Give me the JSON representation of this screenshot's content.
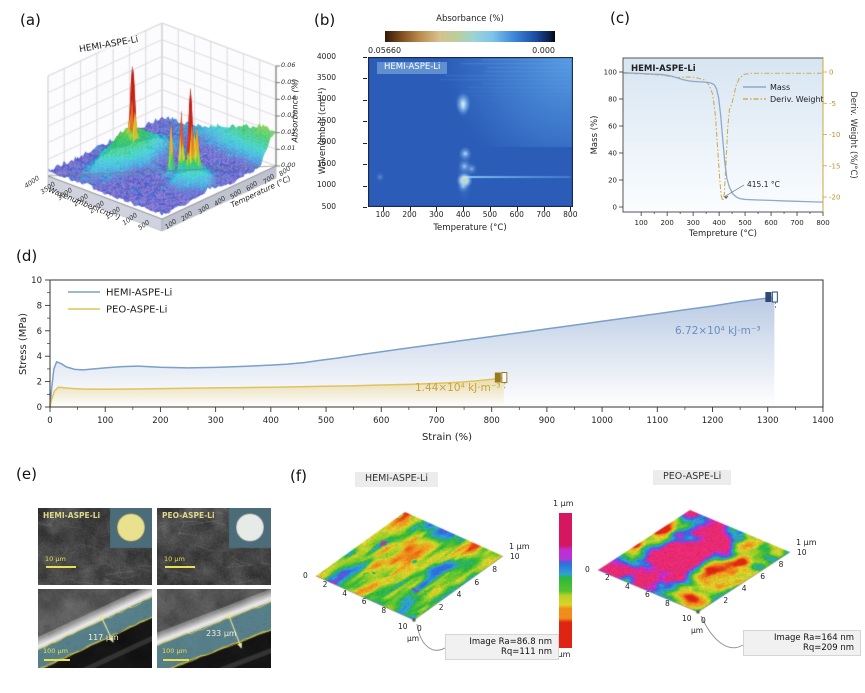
{
  "panel_a": {
    "letter": "(a)",
    "sample_label": "HEMI-ASPE-Li",
    "zlabel": "Absorbance (%)",
    "xlabel": "Wavenumber (cm⁻¹)",
    "ylabel": "Temperature (°C)",
    "zticks": [
      "0.00",
      "0.01",
      "0.02",
      "0.03",
      "0.04",
      "0.05",
      "0.06"
    ],
    "xticks": [
      "4000",
      "3500",
      "3000",
      "2500",
      "2000",
      "1500",
      "1000",
      "500"
    ],
    "yticks": [
      "100",
      "200",
      "300",
      "400",
      "500",
      "600",
      "700",
      "800"
    ]
  },
  "panel_b": {
    "letter": "(b)",
    "colorbar_title": "Absorbance (%)",
    "colorbar_left_value": "0.05660",
    "colorbar_right_value": "0.000",
    "sample_label": "HEMI-ASPE-Li",
    "ylabel": "Wavenumber (cm⁻¹)",
    "xlabel": "Temperature (°C)",
    "yticks": [
      "4000",
      "3500",
      "3000",
      "2500",
      "2000",
      "1500",
      "1000",
      "500"
    ],
    "xticks": [
      "100",
      "200",
      "300",
      "400",
      "500",
      "600",
      "700",
      "800"
    ]
  },
  "panel_c": {
    "letter": "(c)",
    "sample_label": "HEMI-ASPE-Li",
    "xlabel": "Tempreture (°C)",
    "ylabel_left": "Mass (%)",
    "ylabel_right": "Deriv. Weight (%/°C)",
    "legend": [
      {
        "label": "Mass"
      },
      {
        "label": "Deriv. Weight"
      }
    ],
    "annotation": "415.1 °C",
    "yticks_left": [
      "0",
      "20",
      "40",
      "60",
      "80",
      "100"
    ],
    "yticks_right": [
      "0",
      "-5",
      "-10",
      "-15",
      "-20"
    ],
    "xticks": [
      "100",
      "200",
      "300",
      "400",
      "500",
      "600",
      "700",
      "800"
    ]
  },
  "panel_d": {
    "letter": "(d)",
    "legend": [
      {
        "label": "HEMI-ASPE-Li"
      },
      {
        "label": "PEO-ASPE-Li"
      }
    ],
    "xlabel": "Strain (%)",
    "ylabel": "Stress (MPa)",
    "annotation_hemi": "6.72×10⁴ kJ·m⁻³",
    "annotation_peo": "1.44×10⁴ kJ·m⁻³",
    "xticks": [
      "0",
      "100",
      "200",
      "300",
      "400",
      "500",
      "600",
      "700",
      "800",
      "900",
      "1000",
      "1100",
      "1200",
      "1300",
      "1400"
    ],
    "yticks": [
      "0",
      "2",
      "4",
      "6",
      "8",
      "10"
    ]
  },
  "panel_e": {
    "letter": "(e)",
    "top_left_label": "HEMI-ASPE-Li",
    "top_right_label": "PEO-ASPE-Li",
    "scalebar_top": "10 μm",
    "scalebar_bottom": "100 μm",
    "thickness_left": "117 μm",
    "thickness_right": "233 μm"
  },
  "panel_f": {
    "letter": "(f)",
    "left": {
      "title": "HEMI-ASPE-Li",
      "ra": "Image Ra=86.8 nm",
      "rq": "Rq=111 nm"
    },
    "right": {
      "title": "PEO-ASPE-Li",
      "ra": "Image Ra=164 nm",
      "rq": "Rq=209 nm"
    },
    "colorbar_top": "1 μm",
    "colorbar_bottom": "-1 μm",
    "z_label": "1 μm",
    "unit": "μm",
    "ticks_edge_left": [
      "0",
      "2",
      "4",
      "6",
      "8"
    ],
    "corner_left": "10",
    "corner_right": "0",
    "ticks_edge_right": [
      "2",
      "4",
      "6",
      "8",
      "10"
    ]
  },
  "colors": {
    "panel_b_bg": "#2a5cb8",
    "panel_b_corner": "#4690dd",
    "mass": "#8fa9c7",
    "deriv": "#cfae4e",
    "hemi": "#7c9fcb",
    "peo": "#e2c35b",
    "annotation_hemi": "#6a8fbd",
    "annotation_peo": "#c7a43b",
    "sem_label": "#ded98a",
    "scalebar": "#e8e04e",
    "colorbar_b": [
      [
        "#331a06",
        0
      ],
      [
        "#7a4a1e",
        9
      ],
      [
        "#b9894a",
        20
      ],
      [
        "#d6c18e",
        32
      ],
      [
        "#b7cf9d",
        43
      ],
      [
        "#9ed3d3",
        52
      ],
      [
        "#7fc4ec",
        63
      ],
      [
        "#3c86d8",
        76
      ],
      [
        "#1c4fa8",
        88
      ],
      [
        "#0b1e48",
        97
      ],
      [
        "#05050a",
        100
      ]
    ],
    "afm_bar": [
      [
        "#d4175e",
        0
      ],
      [
        "#d4175e",
        24
      ],
      [
        "#c22ccf",
        27
      ],
      [
        "#b635d6",
        34
      ],
      [
        "#2f6bdc",
        37
      ],
      [
        "#2e9fd8",
        45
      ],
      [
        "#2db83c",
        48
      ],
      [
        "#57c32f",
        58
      ],
      [
        "#b8d023",
        61
      ],
      [
        "#ddd32a",
        68
      ],
      [
        "#ef8c1a",
        71
      ],
      [
        "#ef8c1a",
        78
      ],
      [
        "#e02414",
        81
      ],
      [
        "#e02414",
        100
      ]
    ]
  },
  "chart_data": [
    {
      "panel": "a",
      "type": "surface",
      "title": "HEMI-ASPE-Li",
      "xlabel": "Wavenumber (cm⁻¹)",
      "x_range": [
        4000,
        500
      ],
      "ylabel": "Temperature (°C)",
      "y_range": [
        100,
        800
      ],
      "zlabel": "Absorbance (%)",
      "z_range": [
        0,
        0.06
      ],
      "peaks": [
        {
          "wavenumber": 2915,
          "temperature": 400,
          "absorbance": 0.047
        },
        {
          "wavenumber": 2845,
          "temperature": 395,
          "absorbance": 0.038
        },
        {
          "wavenumber": 1750,
          "temperature": 405,
          "absorbance": 0.03
        },
        {
          "wavenumber": 1400,
          "temperature": 405,
          "absorbance": 0.033
        },
        {
          "wavenumber": 1120,
          "temperature": 405,
          "absorbance": 0.055
        },
        {
          "wavenumber": 1000,
          "temperature": 420,
          "absorbance": 0.022
        },
        {
          "wavenumber": 1250,
          "temperature": 450,
          "absorbance": 0.018
        }
      ],
      "broad_mound": {
        "wavenumber": 3000,
        "temperature": 400,
        "absorbance": 0.018
      },
      "corner_ridge": {
        "temperature": 800,
        "absorbance": 0.012
      }
    },
    {
      "panel": "b",
      "type": "heatmap",
      "colorbar": {
        "title": "Absorbance (%)",
        "max": 0.0566,
        "min": 0.0
      },
      "xlabel": "Temperature (°C)",
      "x_range": [
        50,
        800
      ],
      "ylabel": "Wavenumber (cm⁻¹)",
      "y_range": [
        500,
        4000
      ],
      "hot_spots": [
        {
          "temperature": 400,
          "wavenumber": 2920,
          "intensity": 0.9
        },
        {
          "temperature": 400,
          "wavenumber": 2850,
          "intensity": 0.5
        },
        {
          "temperature": 408,
          "wavenumber": 1745,
          "intensity": 0.65
        },
        {
          "temperature": 405,
          "wavenumber": 1450,
          "intensity": 0.5
        },
        {
          "temperature": 432,
          "wavenumber": 1390,
          "intensity": 0.4
        },
        {
          "temperature": 405,
          "wavenumber": 1120,
          "intensity": 1.0
        },
        {
          "temperature": 400,
          "wavenumber": 980,
          "intensity": 0.45
        },
        {
          "temperature": 90,
          "wavenumber": 1200,
          "intensity": 0.2
        }
      ],
      "ridge_line": {
        "wavenumber": 1200,
        "temperature_from": 400,
        "temperature_to": 800
      }
    },
    {
      "panel": "c",
      "type": "line",
      "xlabel": "Tempreture (°C)",
      "annotation": {
        "text": "415.1 °C",
        "temperature": 415.1
      },
      "series": [
        {
          "name": "Mass",
          "axis": "left",
          "ylim": [
            0,
            100
          ],
          "x": [
            30,
            60,
            100,
            140,
            180,
            200,
            220,
            240,
            260,
            280,
            300,
            320,
            340,
            360,
            372,
            382,
            390,
            398,
            406,
            414,
            422,
            430,
            440,
            452,
            465,
            480,
            500,
            550,
            600,
            650,
            700,
            750,
            800
          ],
          "y": [
            99.6,
            99.2,
            98.9,
            98.5,
            98.1,
            97.6,
            96.8,
            95.6,
            94.4,
            93.5,
            93.0,
            92.8,
            92.6,
            92.2,
            91.6,
            90.4,
            87.5,
            81,
            68,
            50,
            33,
            21,
            14.5,
            10,
            7.5,
            6.2,
            5.6,
            5.2,
            4.9,
            4.5,
            4.2,
            3.9,
            3.6
          ]
        },
        {
          "name": "Deriv. Weight",
          "axis": "right",
          "ylim": [
            -20,
            0
          ],
          "x": [
            30,
            100,
            180,
            240,
            280,
            310,
            340,
            360,
            375,
            386,
            394,
            402,
            408,
            414,
            420,
            426,
            433,
            440,
            448,
            456,
            465,
            478,
            495,
            520,
            600,
            700,
            800
          ],
          "y": [
            -0.2,
            -0.3,
            -0.5,
            -0.9,
            -0.8,
            -0.9,
            -1.2,
            -2.0,
            -3.5,
            -7,
            -12,
            -17,
            -19.8,
            -20.6,
            -19.5,
            -15,
            -9,
            -6,
            -5.2,
            -4.0,
            -2.2,
            -1.0,
            -0.4,
            -0.2,
            -0.2,
            -0.2,
            -0.2
          ]
        }
      ]
    },
    {
      "panel": "d",
      "type": "line",
      "xlabel": "Strain (%)",
      "ylabel": "Stress (MPa)",
      "xlim": [
        0,
        1400
      ],
      "ylim": [
        0,
        10
      ],
      "series": [
        {
          "name": "HEMI-ASPE-Li",
          "toughness": "6.72×10⁴ kJ·m⁻³",
          "x": [
            0,
            3,
            7,
            12,
            20,
            30,
            45,
            60,
            80,
            100,
            130,
            160,
            200,
            250,
            300,
            350,
            400,
            430,
            460,
            490,
            520,
            560,
            600,
            650,
            700,
            750,
            800,
            850,
            900,
            950,
            1000,
            1050,
            1100,
            1150,
            1200,
            1250,
            1300,
            1312
          ],
          "y": [
            0,
            1.5,
            3.0,
            3.55,
            3.42,
            3.15,
            2.96,
            2.92,
            3.0,
            3.08,
            3.18,
            3.22,
            3.13,
            3.08,
            3.12,
            3.2,
            3.3,
            3.38,
            3.5,
            3.68,
            3.85,
            4.1,
            4.35,
            4.65,
            4.95,
            5.25,
            5.55,
            5.85,
            6.15,
            6.45,
            6.75,
            7.05,
            7.35,
            7.65,
            7.95,
            8.3,
            8.58,
            8.66
          ]
        },
        {
          "name": "PEO-ASPE-Li",
          "toughness": "1.44×10⁴ kJ·m⁻³",
          "x": [
            0,
            3,
            8,
            15,
            25,
            40,
            60,
            100,
            150,
            200,
            250,
            300,
            350,
            400,
            450,
            500,
            550,
            600,
            650,
            700,
            740,
            770,
            800,
            815,
            822
          ],
          "y": [
            0,
            0.6,
            1.25,
            1.56,
            1.52,
            1.46,
            1.42,
            1.4,
            1.42,
            1.45,
            1.47,
            1.5,
            1.53,
            1.56,
            1.6,
            1.63,
            1.68,
            1.73,
            1.78,
            1.86,
            1.95,
            2.05,
            2.18,
            2.27,
            2.32
          ]
        }
      ]
    },
    {
      "panel": "f",
      "type": "surface",
      "surfaces": [
        {
          "title": "HEMI-ASPE-Li",
          "ra_nm": 86.8,
          "rq_nm": 111,
          "x_range_um": [
            0,
            10
          ],
          "y_range_um": [
            0,
            10
          ],
          "z_range_um": [
            -1,
            1
          ]
        },
        {
          "title": "PEO-ASPE-Li",
          "ra_nm": 164,
          "rq_nm": 209,
          "x_range_um": [
            0,
            10
          ],
          "y_range_um": [
            0,
            10
          ],
          "z_range_um": [
            -1,
            1
          ]
        }
      ]
    }
  ]
}
